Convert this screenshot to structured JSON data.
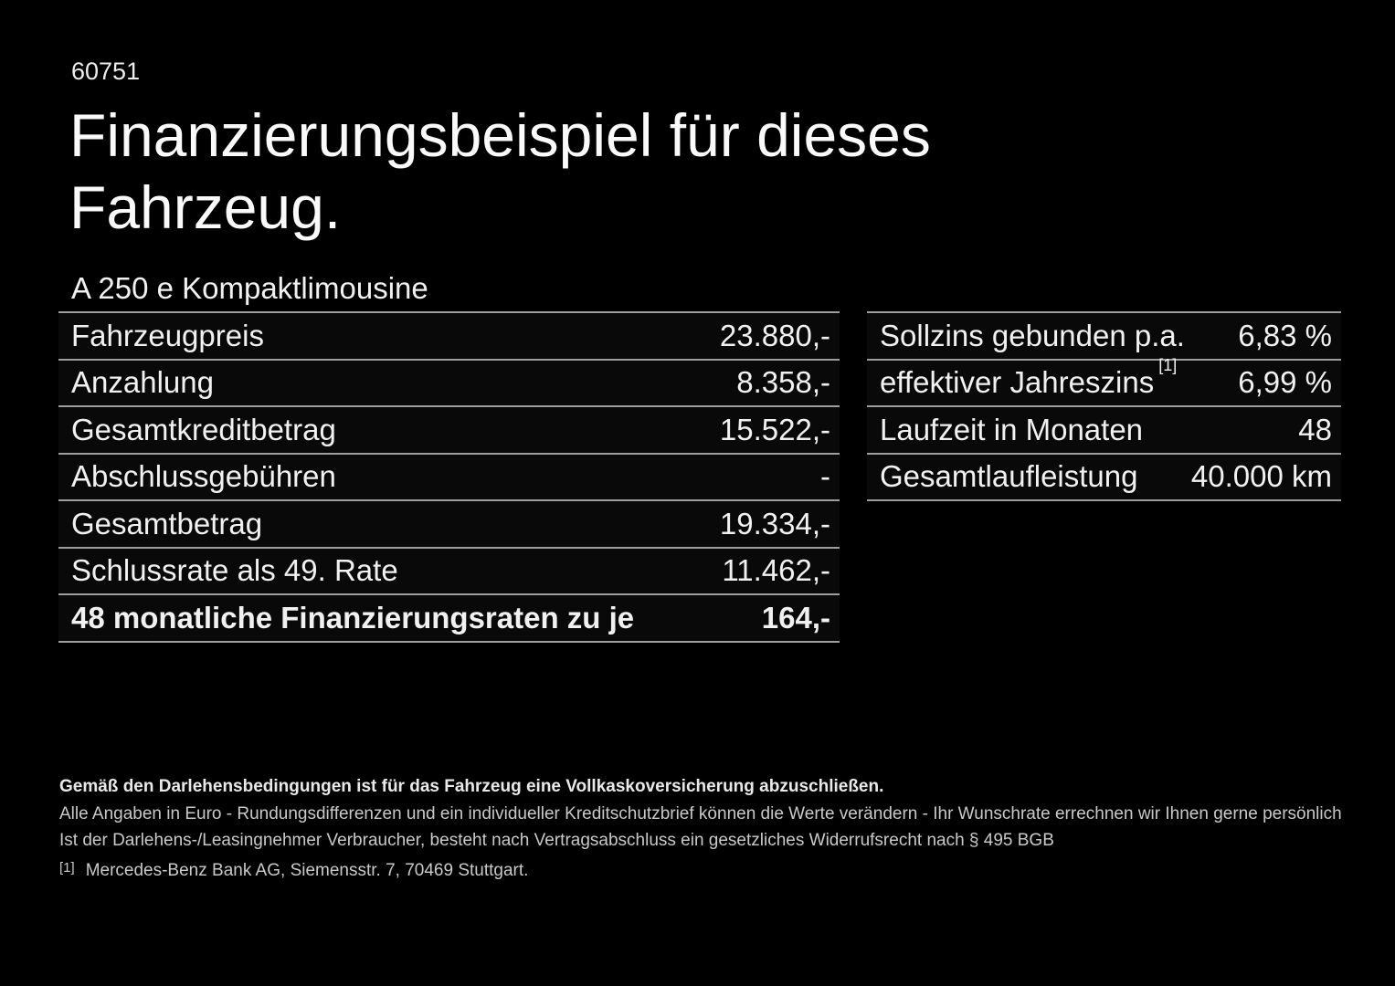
{
  "page": {
    "doc_number": "60751",
    "title_line1": "Finanzierungsbeispiel für dieses",
    "title_line2": "Fahrzeug.",
    "subtitle": "A 250 e Kompaktlimousine"
  },
  "colors": {
    "background": "#000000",
    "text_primary": "#f1f1f1",
    "divider_line": "#9e9e9e",
    "footer_text": "#c9c9c9"
  },
  "left_table": {
    "rows": [
      {
        "label": "Fahrzeugpreis",
        "value": "23.880,-"
      },
      {
        "label": "Anzahlung",
        "value": "8.358,-"
      },
      {
        "label": "Gesamtkreditbetrag",
        "value": "15.522,-"
      },
      {
        "label": "Abschlussgebühren",
        "value": "-"
      },
      {
        "label": "Gesamtbetrag",
        "value": "19.334,-"
      },
      {
        "label": "Schlussrate als 49. Rate",
        "value": "11.462,-"
      },
      {
        "label": "48 monatliche Finanzierungsraten zu je",
        "value": "164,-"
      }
    ]
  },
  "right_table": {
    "rows": [
      {
        "label": "Sollzins gebunden p.a.",
        "value": "6,83 %"
      },
      {
        "label": "effektiver Jahreszins",
        "footnote_ref": "[1]",
        "value": "6,99 %"
      },
      {
        "label": "Laufzeit in Monaten",
        "value": "48"
      },
      {
        "label": "Gesamtlaufleistung",
        "value": "40.000 km"
      }
    ]
  },
  "footer": {
    "insurance_note": "Gemäß den Darlehensbedingungen ist für das Fahrzeug eine Vollkaskoversicherung abzuschließen.",
    "disclaimer_line1": "Alle Angaben in Euro - Rundungsdifferenzen und ein individueller Kreditschutzbrief können die Werte verändern - Ihr Wunschrate errechnen wir Ihnen gerne persönlich",
    "disclaimer_line2": "Ist der Darlehens-/Leasingnehmer Verbraucher, besteht nach Vertragsabschluss ein gesetzliches Widerrufsrecht nach § 495 BGB",
    "footnote_marker": "[1]",
    "footnote_text": "Mercedes-Benz Bank AG, Siemensstr. 7, 70469 Stuttgart."
  }
}
